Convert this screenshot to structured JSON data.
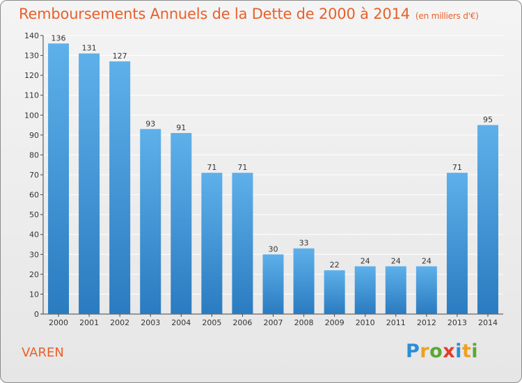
{
  "header": {
    "title": "Remboursements Annuels de la Dette de 2000 à 2014",
    "subtitle": "(en milliers d'€)"
  },
  "footer": {
    "commune": "VAREN",
    "logo_letters": [
      "P",
      "r",
      "o",
      "x",
      "i",
      "t",
      "i"
    ]
  },
  "colors": {
    "title": "#e8602a",
    "bar_top": "#5eb0ea",
    "bar_bottom": "#2a7bc0",
    "grid": "#ffffff"
  },
  "chart_data": {
    "type": "bar",
    "title": "Remboursements Annuels de la Dette de 2000 à 2014",
    "subtitle": "(en milliers d'€)",
    "xlabel": "",
    "ylabel": "",
    "categories": [
      "2000",
      "2001",
      "2002",
      "2003",
      "2004",
      "2005",
      "2006",
      "2007",
      "2008",
      "2009",
      "2010",
      "2011",
      "2012",
      "2013",
      "2014"
    ],
    "values": [
      136,
      131,
      127,
      93,
      91,
      71,
      71,
      30,
      33,
      22,
      24,
      24,
      24,
      71,
      95
    ],
    "ylim": [
      0,
      140
    ],
    "yticks": [
      0,
      10,
      20,
      30,
      40,
      50,
      60,
      70,
      80,
      90,
      100,
      110,
      120,
      130,
      140
    ],
    "grid": true,
    "legend": "none"
  }
}
